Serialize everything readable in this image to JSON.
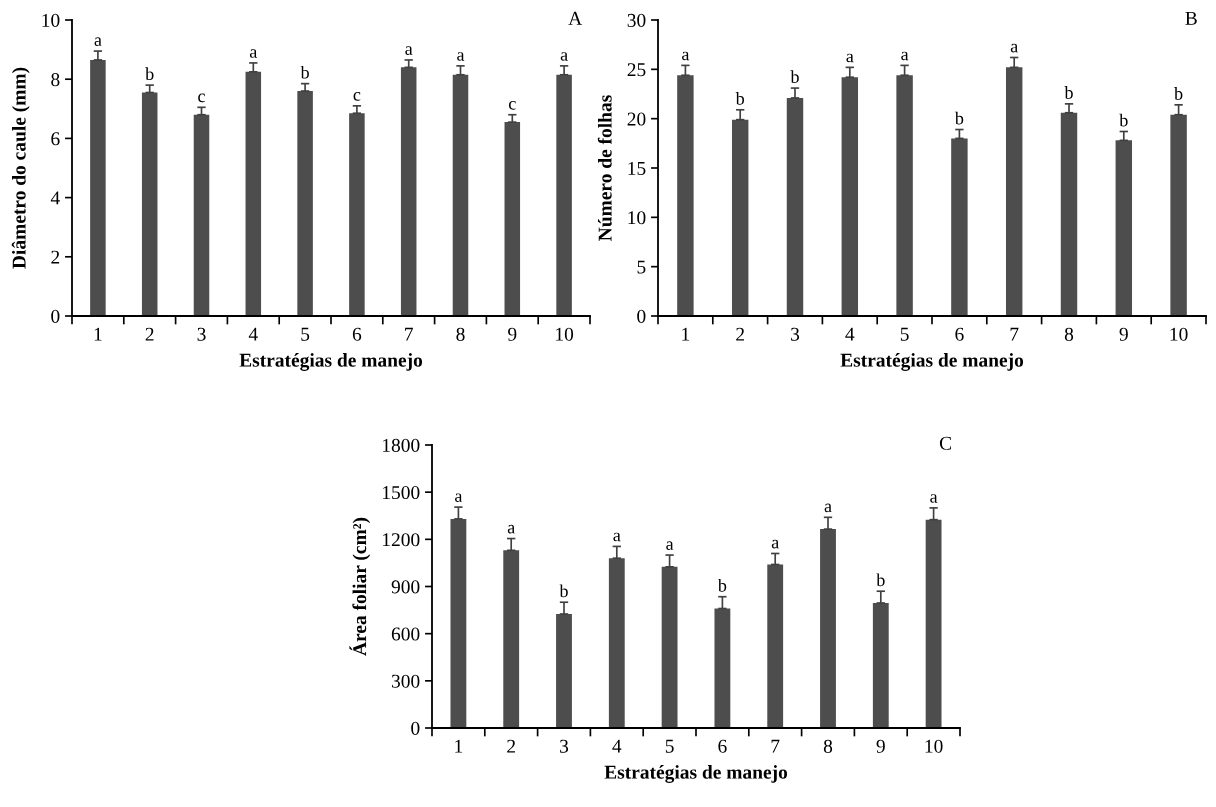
{
  "chart_data": [
    {
      "type": "bar",
      "title": "A",
      "xlabel": "Estratégias de manejo",
      "ylabel": "Diâmetro do caule (mm)",
      "categories": [
        "1",
        "2",
        "3",
        "4",
        "5",
        "6",
        "7",
        "8",
        "9",
        "10"
      ],
      "color": "#4d4d4d",
      "values": [
        8.65,
        7.55,
        6.8,
        8.25,
        7.6,
        6.85,
        8.4,
        8.15,
        6.55,
        8.15
      ],
      "errors": [
        [
          8.65,
          8.95
        ],
        [
          7.55,
          7.8
        ],
        [
          6.8,
          7.05
        ],
        [
          8.25,
          8.55
        ],
        [
          7.6,
          7.85
        ],
        [
          6.85,
          7.1
        ],
        [
          8.4,
          8.65
        ],
        [
          8.15,
          8.45
        ],
        [
          6.55,
          6.8
        ],
        [
          8.15,
          8.45
        ]
      ],
      "annotations": [
        {
          "text": "a",
          "x": "1",
          "y": 8.95
        },
        {
          "text": "b",
          "x": "2",
          "y": 7.8
        },
        {
          "text": "c",
          "x": "3",
          "y": 7.05
        },
        {
          "text": "a",
          "x": "4",
          "y": 8.55
        },
        {
          "text": "b",
          "x": "5",
          "y": 7.85
        },
        {
          "text": "c",
          "x": "6",
          "y": 7.1
        },
        {
          "text": "a",
          "x": "7",
          "y": 8.65
        },
        {
          "text": "a",
          "x": "8",
          "y": 8.45
        },
        {
          "text": "c",
          "x": "9",
          "y": 6.8
        },
        {
          "text": "a",
          "x": "10",
          "y": 8.45
        }
      ],
      "ylim": [
        0,
        10
      ],
      "yticks": [
        0,
        2,
        4,
        6,
        8,
        10
      ],
      "grid": false
    },
    {
      "type": "bar",
      "title": "B",
      "xlabel": "Estratégias de manejo",
      "ylabel": "Número de folhas",
      "categories": [
        "1",
        "2",
        "3",
        "4",
        "5",
        "6",
        "7",
        "8",
        "9",
        "10"
      ],
      "color": "#4d4d4d",
      "values": [
        24.4,
        19.9,
        22.1,
        24.2,
        24.4,
        18.0,
        25.2,
        20.6,
        17.8,
        20.4
      ],
      "errors": [
        [
          24.4,
          25.4
        ],
        [
          19.9,
          20.9
        ],
        [
          22.1,
          23.1
        ],
        [
          24.2,
          25.2
        ],
        [
          24.4,
          25.4
        ],
        [
          18.0,
          18.9
        ],
        [
          25.2,
          26.2
        ],
        [
          20.6,
          21.5
        ],
        [
          17.8,
          18.7
        ],
        [
          20.4,
          21.4
        ]
      ],
      "annotations": [
        {
          "text": "a",
          "x": "1",
          "y": 25.4
        },
        {
          "text": "b",
          "x": "2",
          "y": 20.9
        },
        {
          "text": "b",
          "x": "3",
          "y": 23.1
        },
        {
          "text": "a",
          "x": "4",
          "y": 25.2
        },
        {
          "text": "a",
          "x": "5",
          "y": 25.4
        },
        {
          "text": "b",
          "x": "6",
          "y": 18.9
        },
        {
          "text": "a",
          "x": "7",
          "y": 26.2
        },
        {
          "text": "b",
          "x": "8",
          "y": 21.5
        },
        {
          "text": "b",
          "x": "9",
          "y": 18.7
        },
        {
          "text": "b",
          "x": "10",
          "y": 21.4
        }
      ],
      "ylim": [
        0,
        30
      ],
      "yticks": [
        0,
        5,
        10,
        15,
        20,
        25,
        30
      ],
      "grid": false
    },
    {
      "type": "bar",
      "title": "C",
      "xlabel": "Estratégias de manejo",
      "ylabel": "Área foliar (cm²)",
      "categories": [
        "1",
        "2",
        "3",
        "4",
        "5",
        "6",
        "7",
        "8",
        "9",
        "10"
      ],
      "color": "#4d4d4d",
      "values": [
        1330,
        1130,
        725,
        1080,
        1025,
        760,
        1040,
        1265,
        795,
        1325
      ],
      "errors": [
        [
          1330,
          1405
        ],
        [
          1130,
          1205
        ],
        [
          725,
          800
        ],
        [
          1080,
          1155
        ],
        [
          1025,
          1100
        ],
        [
          760,
          835
        ],
        [
          1040,
          1110
        ],
        [
          1265,
          1340
        ],
        [
          795,
          870
        ],
        [
          1325,
          1400
        ]
      ],
      "annotations": [
        {
          "text": "a",
          "x": "1",
          "y": 1405
        },
        {
          "text": "a",
          "x": "2",
          "y": 1205
        },
        {
          "text": "b",
          "x": "3",
          "y": 800
        },
        {
          "text": "a",
          "x": "4",
          "y": 1155
        },
        {
          "text": "a",
          "x": "5",
          "y": 1100
        },
        {
          "text": "b",
          "x": "6",
          "y": 835
        },
        {
          "text": "a",
          "x": "7",
          "y": 1110
        },
        {
          "text": "a",
          "x": "8",
          "y": 1340
        },
        {
          "text": "b",
          "x": "9",
          "y": 870
        },
        {
          "text": "a",
          "x": "10",
          "y": 1400
        }
      ],
      "ylim": [
        0,
        1800
      ],
      "yticks": [
        0,
        300,
        600,
        900,
        1200,
        1500,
        1800
      ],
      "grid": false
    }
  ]
}
